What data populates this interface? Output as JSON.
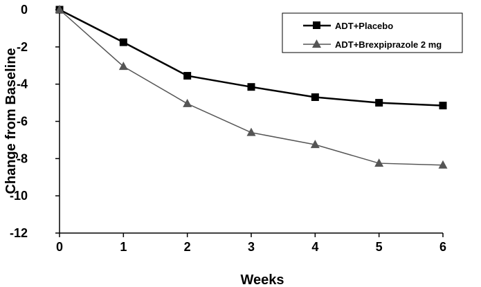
{
  "chart_data": {
    "type": "line",
    "xlabel": "Weeks",
    "ylabel": "Change from Baseline",
    "x": [
      0,
      1,
      2,
      3,
      4,
      5,
      6
    ],
    "xticks": [
      "0",
      "1",
      "2",
      "3",
      "4",
      "5",
      "6"
    ],
    "yticks": [
      "0",
      "-2",
      "-4",
      "-6",
      "-8",
      "-10",
      "-12"
    ],
    "ytick_values": [
      0,
      -2,
      -4,
      -6,
      -8,
      -10,
      -12
    ],
    "xlim": [
      0,
      6
    ],
    "ylim": [
      -12,
      0
    ],
    "grid": false,
    "legend_position": "top-right",
    "series": [
      {
        "name": "ADT+Placebo",
        "marker": "square",
        "color": "#000000",
        "values": [
          0,
          -1.75,
          -3.55,
          -4.15,
          -4.7,
          -5.0,
          -5.15
        ]
      },
      {
        "name": "ADT+Brexpiprazole 2 mg",
        "marker": "triangle",
        "color": "#555555",
        "values": [
          0,
          -3.05,
          -5.05,
          -6.6,
          -7.25,
          -8.25,
          -8.35
        ]
      }
    ]
  }
}
